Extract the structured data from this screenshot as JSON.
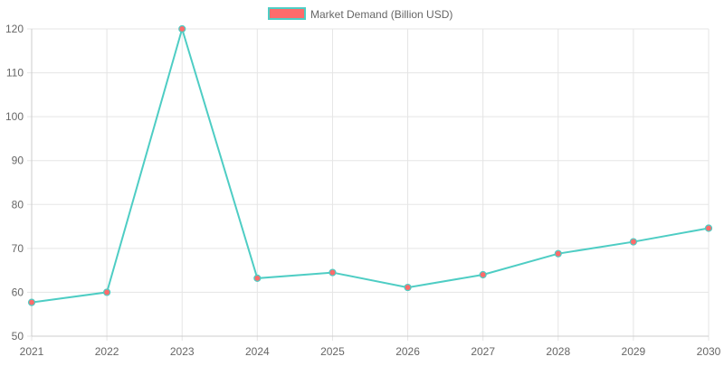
{
  "chart_data": {
    "type": "line",
    "title": "",
    "xlabel": "",
    "ylabel": "",
    "categories": [
      "2021",
      "2022",
      "2023",
      "2024",
      "2025",
      "2026",
      "2027",
      "2028",
      "2029",
      "2030"
    ],
    "series": [
      {
        "name": "Market Demand (Billion USD)",
        "values": [
          57.7,
          60.0,
          120.0,
          63.2,
          64.5,
          61.1,
          64.0,
          68.8,
          71.5,
          74.6
        ],
        "line_color": "#4ecdc4",
        "point_color": "#ff6b6b",
        "legend_fill": "#ff6b6b"
      }
    ],
    "ylim": [
      50,
      120
    ],
    "y_ticks": [
      "50",
      "60",
      "70",
      "80",
      "90",
      "100",
      "110",
      "120"
    ],
    "grid": true,
    "legend_position": "top-center"
  },
  "colors": {
    "grid": "#e5e5e5",
    "axis": "#cccccc",
    "tick_text": "#666666"
  }
}
